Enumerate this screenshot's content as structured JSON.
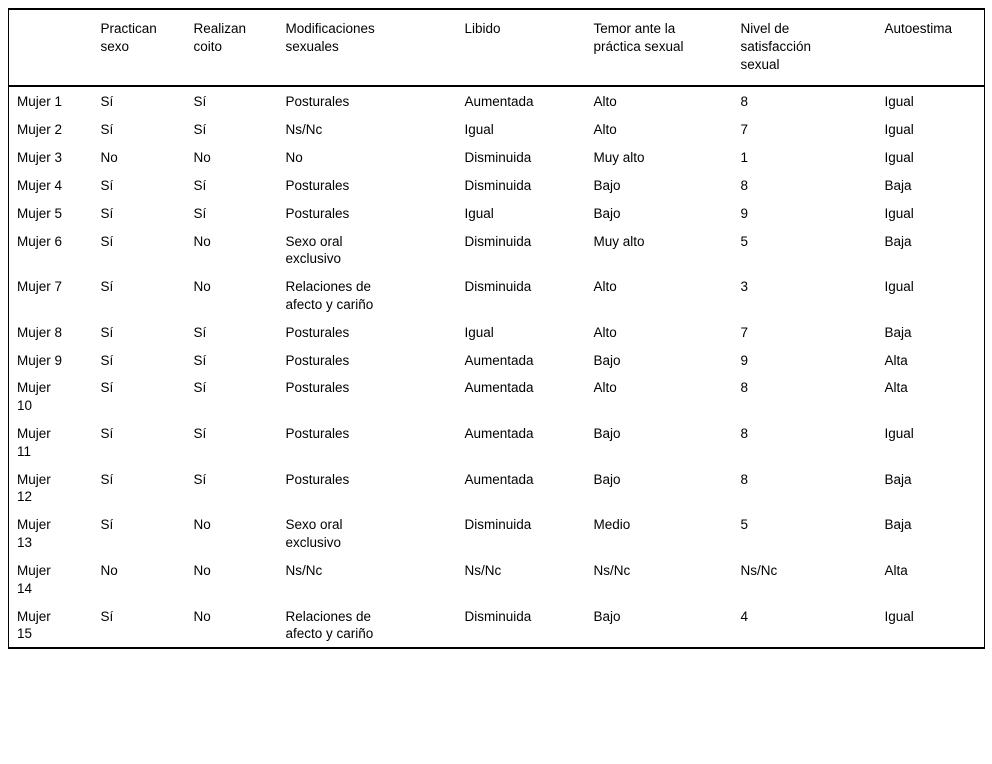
{
  "table": {
    "columns": [
      "",
      "Practican sexo",
      "Realizan coito",
      "Modificaciones sexuales",
      "Libido",
      "Temor ante la práctica sexual",
      "Nivel de satisfacción sexual",
      "Autoestima"
    ],
    "rows": [
      {
        "label": "Mujer 1",
        "cells": [
          "Sí",
          "Sí",
          "Posturales",
          "Aumentada",
          "Alto",
          "8",
          "Igual"
        ]
      },
      {
        "label": "Mujer 2",
        "cells": [
          "Sí",
          "Sí",
          "Ns/Nc",
          "Igual",
          "Alto",
          "7",
          "Igual"
        ]
      },
      {
        "label": "Mujer 3",
        "cells": [
          "No",
          "No",
          "No",
          "Disminuida",
          "Muy alto",
          "1",
          "Igual"
        ]
      },
      {
        "label": "Mujer 4",
        "cells": [
          "Sí",
          "Sí",
          "Posturales",
          "Disminuida",
          "Bajo",
          "8",
          "Baja"
        ]
      },
      {
        "label": "Mujer 5",
        "cells": [
          "Sí",
          "Sí",
          "Posturales",
          "Igual",
          "Bajo",
          "9",
          "Igual"
        ]
      },
      {
        "label": "Mujer 6",
        "cells": [
          "Sí",
          "No",
          "Sexo oral exclusivo",
          "Disminuida",
          "Muy alto",
          "5",
          "Baja"
        ]
      },
      {
        "label": "Mujer 7",
        "cells": [
          "Sí",
          "No",
          "Relaciones de afecto y cariño",
          "Disminuida",
          "Alto",
          "3",
          "Igual"
        ]
      },
      {
        "label": "Mujer 8",
        "cells": [
          "Sí",
          "Sí",
          "Posturales",
          "Igual",
          "Alto",
          "7",
          "Baja"
        ]
      },
      {
        "label": "Mujer 9",
        "cells": [
          "Sí",
          "Sí",
          "Posturales",
          "Aumentada",
          "Bajo",
          "9",
          "Alta"
        ]
      },
      {
        "label": "Mujer 10",
        "cells": [
          "Sí",
          "Sí",
          "Posturales",
          "Aumentada",
          "Alto",
          "8",
          "Alta"
        ]
      },
      {
        "label": "Mujer 11",
        "cells": [
          "Sí",
          "Sí",
          "Posturales",
          "Aumentada",
          "Bajo",
          "8",
          "Igual"
        ]
      },
      {
        "label": "Mujer 12",
        "cells": [
          "Sí",
          "Sí",
          "Posturales",
          "Aumentada",
          "Bajo",
          "8",
          "Baja"
        ]
      },
      {
        "label": "Mujer 13",
        "cells": [
          "Sí",
          "No",
          "Sexo oral exclusivo",
          "Disminuida",
          "Medio",
          "5",
          "Baja"
        ]
      },
      {
        "label": "Mujer 14",
        "cells": [
          "No",
          "No",
          "Ns/Nc",
          "Ns/Nc",
          "Ns/Nc",
          "Ns/Nc",
          "Alta"
        ]
      },
      {
        "label": "Mujer 15",
        "cells": [
          "Sí",
          "No",
          "Relaciones de afecto y cariño",
          "Disminuida",
          "Bajo",
          "4",
          "Igual"
        ]
      }
    ]
  }
}
